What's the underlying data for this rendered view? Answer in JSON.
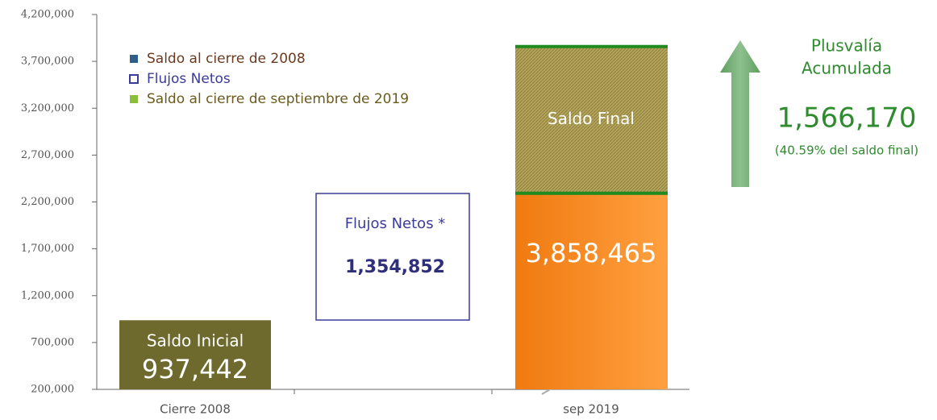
{
  "chart_data": {
    "type": "bar",
    "ylim": [
      200000,
      4200000
    ],
    "yticks": [
      {
        "value": 200000,
        "label": "200,000"
      },
      {
        "value": 700000,
        "label": "700,000"
      },
      {
        "value": 1200000,
        "label": "1,200,000"
      },
      {
        "value": 1700000,
        "label": "1,700,000"
      },
      {
        "value": 2200000,
        "label": "2,200,000"
      },
      {
        "value": 2700000,
        "label": "2,700,000"
      },
      {
        "value": 3200000,
        "label": "3,200,000"
      },
      {
        "value": 3700000,
        "label": "3,700,000"
      },
      {
        "value": 4200000,
        "label": "4,200,000"
      }
    ],
    "categories": [
      "Cierre 2008",
      "sep 2019"
    ],
    "legend": [
      {
        "name": "Saldo al cierre de 2008",
        "color": "#2e5f8a",
        "text_color": "#6b3a1e"
      },
      {
        "name": "Flujos Netos",
        "color": "#3b3b9a",
        "text_color": "#3b3b9a"
      },
      {
        "name": "Saldo al cierre de septiembre de 2019",
        "color": "#8bbf3a",
        "text_color": "#6b5a1e"
      }
    ],
    "initial": {
      "label": "Saldo Inicial",
      "value": 937442,
      "value_label": "937,442",
      "color": "#6e6a2e"
    },
    "final": {
      "base_value": 2292295,
      "base_color": "#f58a1f",
      "label": "Saldo Final",
      "gain_value": 1566170,
      "gain_color": "#b3a45a",
      "total": 3858465,
      "total_label": "3,858,465"
    },
    "flows": {
      "label": "Flujos Netos *",
      "value": 1354852,
      "value_label": "1,354,852"
    },
    "gain": {
      "lines": [
        "Plusvalía",
        "Acumulada"
      ],
      "value": 1566170,
      "value_label": "1,566,170",
      "note": "(40.59% del saldo final)",
      "color": "#2e8b2e"
    }
  }
}
